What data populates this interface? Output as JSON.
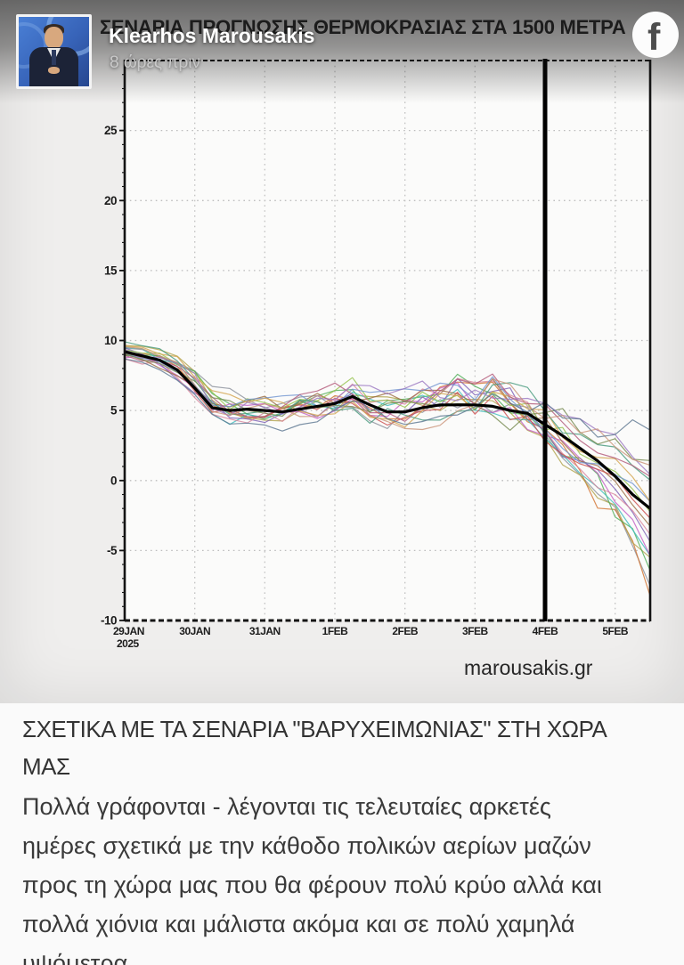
{
  "header": {
    "author": "Klearhos Marousakis",
    "timestamp": "8 ώρες πριν"
  },
  "chart": {
    "title": "ΣΕΝΑΡΙΑ ΠΡΟΓΝΩΣΗΣ ΘΕΡΜΟΚΡΑΣΙΑΣ ΣΤΑ 1500 ΜΕΤΡΑ",
    "watermark": "marousakis.gr"
  },
  "chart_data": {
    "type": "line",
    "title": "ΣΕΝΑΡΙΑ ΠΡΟΓΝΩΣΗΣ ΘΕΡΜΟΚΡΑΣΙΑΣ ΣΤΑ 1500 ΜΕΤΡΑ",
    "description": "Ensemble temperature forecast spaghetti plot, thick black line = ensemble mean, vertical black line highlights 4FEB",
    "grid": "dotted",
    "xlim": [
      0,
      7.5
    ],
    "ylim": [
      -10,
      30
    ],
    "y_ticks": [
      -10,
      -5,
      0,
      5,
      10,
      15,
      20,
      25
    ],
    "x_ticks": [
      {
        "d": 0,
        "label": "29JAN",
        "sub": "2025"
      },
      {
        "d": 1,
        "label": "30JAN"
      },
      {
        "d": 2,
        "label": "31JAN"
      },
      {
        "d": 3,
        "label": "1FEB"
      },
      {
        "d": 4,
        "label": "2FEB"
      },
      {
        "d": 5,
        "label": "3FEB"
      },
      {
        "d": 6,
        "label": "4FEB"
      },
      {
        "d": 7,
        "label": "5FEB"
      }
    ],
    "highlight_x": 6,
    "x": [
      0,
      0.25,
      0.5,
      0.75,
      1,
      1.25,
      1.5,
      1.75,
      2,
      2.25,
      2.5,
      2.75,
      3,
      3.25,
      3.5,
      3.75,
      4,
      4.25,
      4.5,
      4.75,
      5,
      5.25,
      5.5,
      5.75,
      6,
      6.25,
      6.5,
      6.75,
      7,
      7.25,
      7.5
    ],
    "mean": [
      9.2,
      8.9,
      8.6,
      7.9,
      6.6,
      5.2,
      5.0,
      5.1,
      5.0,
      4.9,
      5.1,
      5.3,
      5.5,
      6.0,
      5.4,
      4.9,
      4.9,
      5.2,
      5.4,
      5.4,
      5.4,
      5.3,
      5.0,
      4.8,
      4.0,
      3.2,
      2.3,
      1.4,
      0.3,
      -1.0,
      -2.0
    ],
    "env_min": [
      8.3,
      8.0,
      7.6,
      6.6,
      5.4,
      3.8,
      3.4,
      3.6,
      3.5,
      3.3,
      3.4,
      3.5,
      3.6,
      3.9,
      3.4,
      3.2,
      3.2,
      3.3,
      3.5,
      3.4,
      3.4,
      3.2,
      2.6,
      2.0,
      0.6,
      -0.8,
      -2.2,
      -3.6,
      -5.0,
      -7.0,
      -9.2
    ],
    "env_max": [
      10.0,
      9.8,
      9.6,
      9.3,
      8.6,
      7.2,
      6.8,
      6.9,
      6.8,
      6.6,
      6.9,
      7.1,
      7.3,
      8.0,
      7.4,
      7.2,
      7.3,
      7.8,
      8.2,
      9.6,
      8.6,
      9.4,
      8.4,
      7.8,
      7.4,
      7.0,
      6.6,
      6.0,
      5.4,
      4.6,
      3.8
    ],
    "members": 19,
    "mean_color": "#000000",
    "member_colors": [
      "#8a8f9a",
      "#d2722e",
      "#b0a24a",
      "#4fae57",
      "#3fbdbd",
      "#c45cc4",
      "#7d5fb5",
      "#d9849c",
      "#9a6a3e",
      "#cc4b4b",
      "#93c24a",
      "#6f93cf",
      "#d3a44c",
      "#44997b",
      "#b25878",
      "#76894f",
      "#9a77c0",
      "#c99277",
      "#5b7590"
    ]
  },
  "post": {
    "heading_lines": [
      "ΣΧΕΤΙΚΑ ΜΕ ΤΑ ΣΕΝΑΡΙΑ \"ΒΑΡΥΧΕΙΜΩΝΙΑΣ\" ΣΤΗ ΧΩΡΑ",
      "ΜΑΣ"
    ],
    "body_lines": [
      "Πολλά γράφονται - λέγονται τις τελευταίες αρκετές",
      "ημέρες σχετικά με την κάθοδο πολικών αερίων μαζών",
      "προς τη χώρα μας που θα φέρουν πολύ κρύο αλλά και",
      "πολλά χιόνια και μάλιστα ακόμα και σε πολύ χαμηλά",
      "υψόμετρα."
    ]
  }
}
